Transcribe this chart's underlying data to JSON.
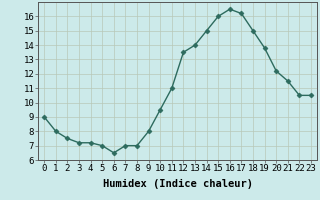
{
  "x": [
    0,
    1,
    2,
    3,
    4,
    5,
    6,
    7,
    8,
    9,
    10,
    11,
    12,
    13,
    14,
    15,
    16,
    17,
    18,
    19,
    20,
    21,
    22,
    23
  ],
  "y": [
    9.0,
    8.0,
    7.5,
    7.2,
    7.2,
    7.0,
    6.5,
    7.0,
    7.0,
    8.0,
    9.5,
    11.0,
    13.5,
    14.0,
    15.0,
    16.0,
    16.5,
    16.2,
    15.0,
    13.8,
    12.2,
    11.5,
    10.5,
    10.5
  ],
  "line_color": "#2d6b5e",
  "marker": "D",
  "marker_size": 2.5,
  "bg_color": "#cceaea",
  "grid_color": "#b8c8b8",
  "xlabel": "Humidex (Indice chaleur)",
  "ylim": [
    6,
    17
  ],
  "xlim": [
    -0.5,
    23.5
  ],
  "yticks": [
    6,
    7,
    8,
    9,
    10,
    11,
    12,
    13,
    14,
    15,
    16
  ],
  "xticks": [
    0,
    1,
    2,
    3,
    4,
    5,
    6,
    7,
    8,
    9,
    10,
    11,
    12,
    13,
    14,
    15,
    16,
    17,
    18,
    19,
    20,
    21,
    22,
    23
  ],
  "tick_label_fontsize": 6.5,
  "xlabel_fontsize": 7.5,
  "linewidth": 1.0
}
